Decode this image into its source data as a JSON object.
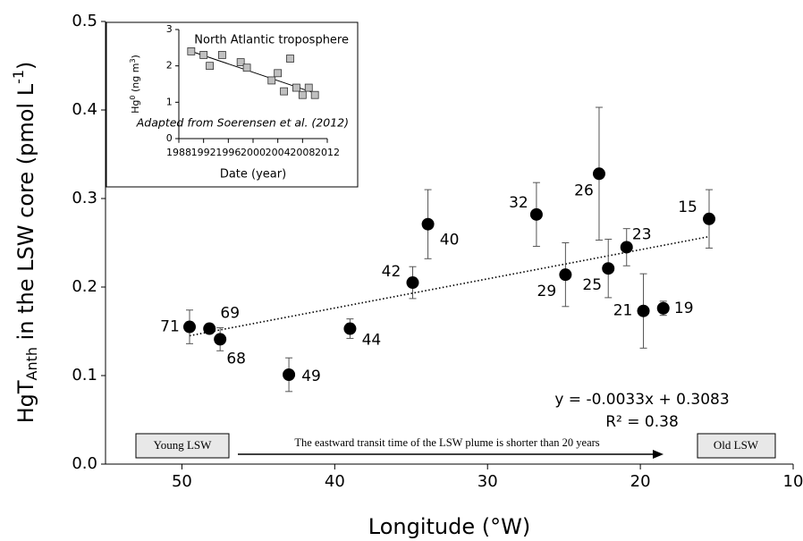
{
  "chart_data": [
    {
      "type": "scatter",
      "x_label": "Longitude (°W)",
      "y_label": {
        "main": "HgT",
        "sub": "Anth",
        "rest": " in the LSW core (pmol L",
        "sup": "-1",
        "end": ")"
      },
      "labels": [
        "71",
        "69",
        "68",
        "49",
        "44",
        "42",
        "40",
        "32",
        "29",
        "26",
        "25",
        "23",
        "21",
        "19",
        "15"
      ],
      "x": [
        49.5,
        48.2,
        47.5,
        43.0,
        39.0,
        34.9,
        33.9,
        26.8,
        24.9,
        22.7,
        22.1,
        20.9,
        19.8,
        18.5,
        15.5
      ],
      "values": [
        0.155,
        0.153,
        0.141,
        0.101,
        0.153,
        0.205,
        0.271,
        0.282,
        0.214,
        0.328,
        0.221,
        0.245,
        0.173,
        0.176,
        0.277
      ],
      "errors": [
        0.019,
        0.005,
        0.013,
        0.019,
        0.011,
        0.018,
        0.039,
        0.036,
        0.036,
        0.075,
        0.033,
        0.021,
        0.042,
        0.008,
        0.033
      ],
      "color": "#000000",
      "trendline": {
        "x": [
          49.5,
          15.5
        ],
        "values": [
          0.145,
          0.257
        ]
      },
      "equation": "y = -0.0033x + 0.3083",
      "r_squared": "R² = 0.38",
      "xlim": [
        55,
        10
      ],
      "xticks": [
        50,
        40,
        30,
        20,
        10
      ],
      "ylim": [
        0,
        0.5
      ],
      "yticks": [
        {
          "value": 0,
          "label": "0.0"
        },
        0.1,
        0.2,
        0.3,
        0.4,
        0.5
      ],
      "annotations": {
        "start": "Young LSW",
        "arrow": "The eastward transit time of the LSW plume is shorter than 20 years",
        "end": "Old LSW"
      }
    },
    {
      "type": "scatter",
      "title": "North Atlantic troposphere",
      "note": "Adapted from Soerensen et al. (2012)",
      "x_label": "Date (year)",
      "y_label": {
        "main": "Hg",
        "sup": "0",
        "rest": " (ng m",
        "sup2": "3",
        "end": ")"
      },
      "x": [
        1990,
        1992,
        1993,
        1995,
        1998,
        1999,
        2003,
        2004,
        2005,
        2006,
        2007,
        2008,
        2009,
        2010
      ],
      "values": [
        2.4,
        2.3,
        2.0,
        2.3,
        2.1,
        1.95,
        1.6,
        1.8,
        1.3,
        2.2,
        1.4,
        1.2,
        1.4,
        1.2
      ],
      "color": "#c0c0c0",
      "trendline": {
        "x": [
          1990,
          2010
        ],
        "values": [
          2.4,
          1.25
        ]
      },
      "xlim": [
        1988,
        2012
      ],
      "xticks": [
        1988,
        1992,
        1996,
        2000,
        2004,
        2008,
        2012
      ],
      "ylim": [
        0,
        3
      ],
      "yticks": [
        0,
        1,
        2,
        3
      ]
    }
  ]
}
